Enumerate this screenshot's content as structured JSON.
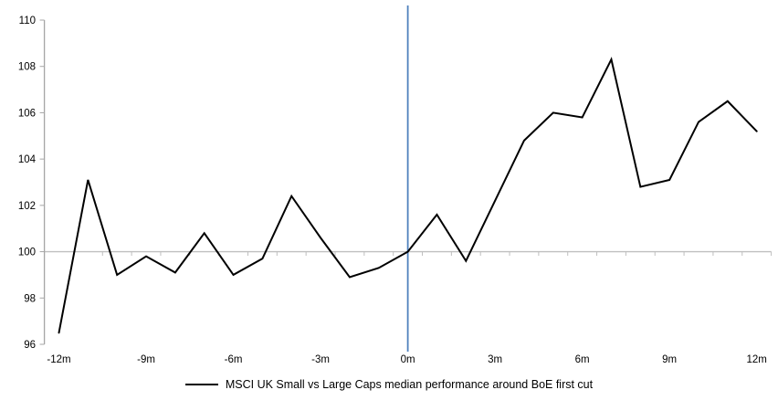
{
  "chart_data": {
    "type": "line",
    "title": "",
    "legend": "MSCI UK Small vs Large Caps median performance around BoE first cut",
    "legend_position": "bottom-center",
    "xlabel": "",
    "ylabel": "",
    "x": [
      -12,
      -11,
      -10,
      -9,
      -8,
      -7,
      -6,
      -5,
      -4,
      -3,
      -2,
      -1,
      0,
      1,
      2,
      3,
      4,
      5,
      6,
      7,
      8,
      9,
      10,
      11,
      12
    ],
    "series": [
      {
        "name": "MSCI UK Small vs Large Caps median performance around BoE first cut",
        "values": [
          96.5,
          103.1,
          99.0,
          99.8,
          99.1,
          100.8,
          99.0,
          99.7,
          102.4,
          100.6,
          98.9,
          99.3,
          100.0,
          101.6,
          99.6,
          102.2,
          104.8,
          106.0,
          105.8,
          108.3,
          102.8,
          103.1,
          105.6,
          106.5,
          105.2
        ]
      }
    ],
    "xlim": [
      -12.5,
      12.5
    ],
    "ylim": [
      96,
      110
    ],
    "yticks": [
      96,
      98,
      100,
      102,
      104,
      106,
      108,
      110
    ],
    "x_labeled_months": [
      -12,
      -9,
      -6,
      -3,
      0,
      3,
      6,
      9,
      12
    ],
    "x_tick_labels": [
      "-12m",
      "-9m",
      "-6m",
      "-3m",
      "0m",
      "3m",
      "6m",
      "9m",
      "12m"
    ],
    "x_label_suffix": "m",
    "baseline_y": 100,
    "event_line_x": 0,
    "grid": false,
    "colors": {
      "series": "#000000",
      "event_line": "#4F81BD",
      "baseline": "#BFBFBF",
      "axis": "#A6A6A6",
      "label": "#000000"
    }
  }
}
